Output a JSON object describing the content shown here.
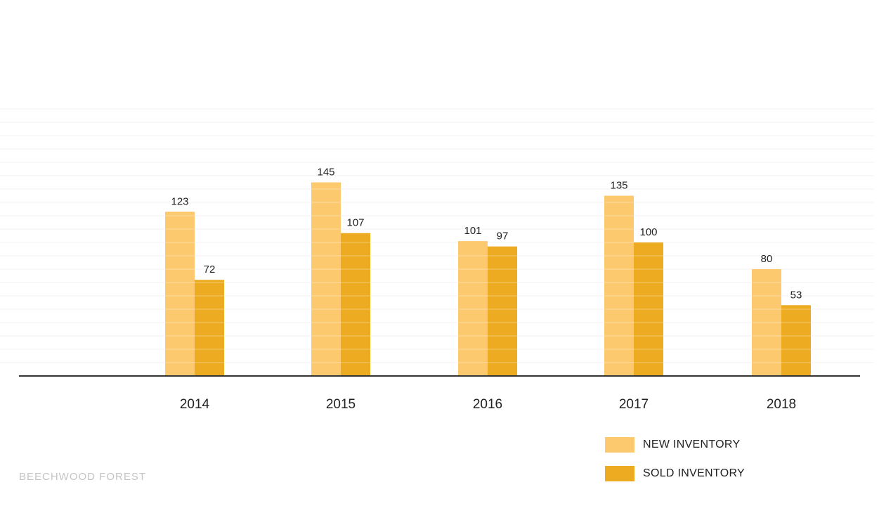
{
  "chart_data": {
    "type": "bar",
    "categories": [
      "2014",
      "2015",
      "2016",
      "2017",
      "2018"
    ],
    "series": [
      {
        "name": "NEW INVENTORY",
        "values": [
          123,
          145,
          101,
          135,
          80
        ],
        "color": "#fdc96f"
      },
      {
        "name": "SOLD INVENTORY",
        "values": [
          72,
          107,
          97,
          100,
          53
        ],
        "color": "#ecab21"
      }
    ],
    "title": "",
    "xlabel": "",
    "ylabel": "",
    "ylim": [
      0,
      200
    ],
    "grid": true,
    "legend_position": "bottom-right",
    "baseline_color": "#333333"
  },
  "brand": "BEECHWOOD FOREST"
}
